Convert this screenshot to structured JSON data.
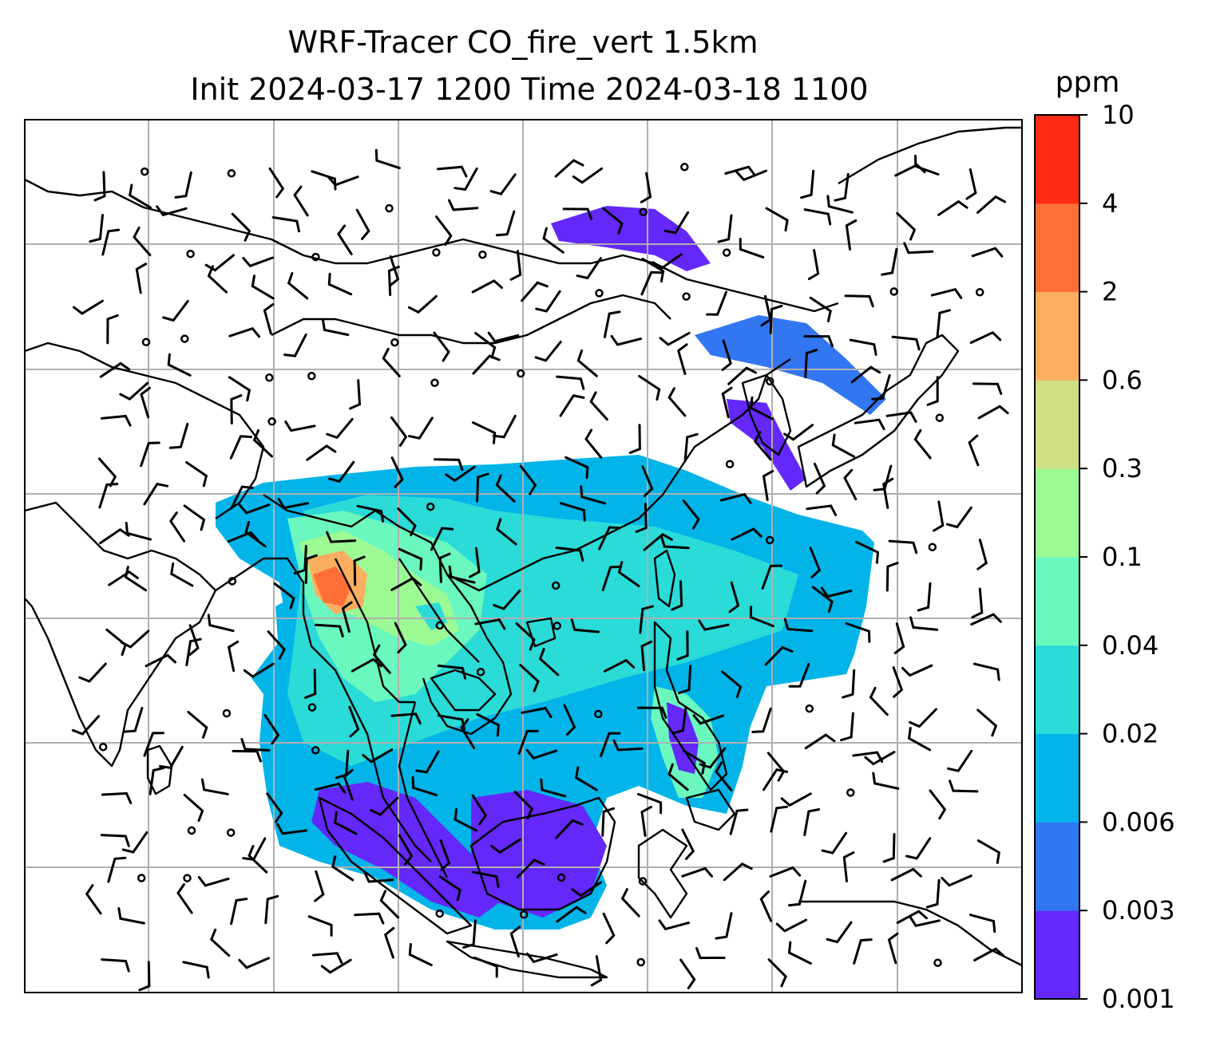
{
  "figure": {
    "title_line1": "WRF-Tracer CO_fire_vert 1.5km",
    "title_line2": "Init 2024-03-17 1200 Time 2024-03-18 1100"
  },
  "colorbar": {
    "unit": "ppm",
    "ticks": [
      "0.001",
      "0.003",
      "0.006",
      "0.02",
      "0.04",
      "0.1",
      "0.3",
      "0.6",
      "2",
      "4",
      "10"
    ],
    "colors": [
      "#6428fa",
      "#3276f2",
      "#02b4e8",
      "#2adbd8",
      "#6af8be",
      "#9cfa94",
      "#d0e084",
      "#fcae60",
      "#ff7038",
      "#ff2a14"
    ]
  },
  "map": {
    "field_colors": {
      "low": "#6428fa",
      "lowmid": "#3276f2",
      "mid": "#02b4e8",
      "midhigh": "#2adbd8",
      "high": "#6af8be",
      "higher": "#9cfa94",
      "peak": "#fcae60",
      "max": "#ff7038"
    },
    "gridline_color": "#b0b0b0",
    "coastline_color": "#000000",
    "layers": [
      "tracer-concentration",
      "coastlines",
      "borders",
      "gridlines",
      "wind-barbs"
    ]
  }
}
